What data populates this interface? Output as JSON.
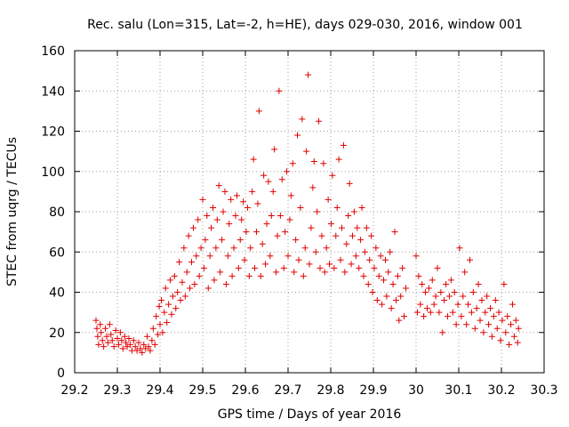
{
  "chart_data": {
    "type": "scatter",
    "title": "Rec. salu (Lon=315, Lat=-2, h=HE), days 029-030, 2016, window 001",
    "xlabel": "GPS time / Days of year 2016",
    "ylabel": "STEC from uqrg / TECUs",
    "xlim": [
      29.2,
      30.3
    ],
    "ylim": [
      0,
      160
    ],
    "xticks": [
      "29.2",
      "29.3",
      "29.4",
      "29.5",
      "29.6",
      "29.7",
      "29.8",
      "29.9",
      "30",
      "30.1",
      "30.2",
      "30.3"
    ],
    "yticks": [
      "0",
      "20",
      "40",
      "60",
      "80",
      "100",
      "120",
      "140",
      "160"
    ],
    "grid": true,
    "marker": "+",
    "color": "#e00000",
    "series": [
      {
        "points": [
          [
            29.25,
            26
          ],
          [
            29.252,
            22
          ],
          [
            29.254,
            18
          ],
          [
            29.256,
            14
          ],
          [
            29.26,
            24
          ],
          [
            29.262,
            20
          ],
          [
            29.265,
            16
          ],
          [
            29.268,
            13
          ],
          [
            29.272,
            22
          ],
          [
            29.275,
            18
          ],
          [
            29.278,
            15
          ],
          [
            29.282,
            24
          ],
          [
            29.285,
            19
          ],
          [
            29.288,
            16
          ],
          [
            29.292,
            13
          ],
          [
            29.296,
            21
          ],
          [
            29.3,
            17
          ],
          [
            29.303,
            14
          ],
          [
            29.307,
            20
          ],
          [
            29.31,
            16
          ],
          [
            29.313,
            12
          ],
          [
            29.317,
            18
          ],
          [
            29.32,
            15
          ],
          [
            29.323,
            13
          ],
          [
            29.327,
            17
          ],
          [
            29.33,
            14
          ],
          [
            29.334,
            11
          ],
          [
            29.338,
            16
          ],
          [
            29.342,
            13
          ],
          [
            29.346,
            11
          ],
          [
            29.35,
            15
          ],
          [
            29.354,
            12
          ],
          [
            29.358,
            10
          ],
          [
            29.362,
            14
          ],
          [
            29.366,
            12
          ],
          [
            29.37,
            18
          ],
          [
            29.373,
            13
          ],
          [
            29.377,
            11
          ],
          [
            29.381,
            16
          ],
          [
            29.384,
            22
          ],
          [
            29.388,
            14
          ],
          [
            29.391,
            28
          ],
          [
            29.395,
            19
          ],
          [
            29.398,
            33
          ],
          [
            29.4,
            24
          ],
          [
            29.403,
            36
          ],
          [
            29.406,
            20
          ],
          [
            29.41,
            30
          ],
          [
            29.413,
            42
          ],
          [
            29.416,
            25
          ],
          [
            29.42,
            34
          ],
          [
            29.424,
            46
          ],
          [
            29.427,
            29
          ],
          [
            29.43,
            38
          ],
          [
            29.434,
            48
          ],
          [
            29.437,
            32
          ],
          [
            29.441,
            40
          ],
          [
            29.445,
            55
          ],
          [
            29.448,
            36
          ],
          [
            29.452,
            45
          ],
          [
            29.456,
            62
          ],
          [
            29.459,
            38
          ],
          [
            29.463,
            50
          ],
          [
            29.467,
            68
          ],
          [
            29.47,
            42
          ],
          [
            29.474,
            55
          ],
          [
            29.478,
            72
          ],
          [
            29.481,
            44
          ],
          [
            29.485,
            58
          ],
          [
            29.489,
            76
          ],
          [
            29.492,
            48
          ],
          [
            29.496,
            62
          ],
          [
            29.5,
            86
          ],
          [
            29.503,
            52
          ],
          [
            29.506,
            66
          ],
          [
            29.51,
            78
          ],
          [
            29.513,
            42
          ],
          [
            29.517,
            58
          ],
          [
            29.52,
            72
          ],
          [
            29.524,
            82
          ],
          [
            29.527,
            46
          ],
          [
            29.531,
            62
          ],
          [
            29.534,
            76
          ],
          [
            29.538,
            93
          ],
          [
            29.541,
            50
          ],
          [
            29.545,
            66
          ],
          [
            29.548,
            80
          ],
          [
            29.552,
            90
          ],
          [
            29.555,
            44
          ],
          [
            29.559,
            58
          ],
          [
            29.562,
            74
          ],
          [
            29.566,
            86
          ],
          [
            29.569,
            48
          ],
          [
            29.573,
            62
          ],
          [
            29.577,
            78
          ],
          [
            29.58,
            88
          ],
          [
            29.584,
            52
          ],
          [
            29.588,
            66
          ],
          [
            29.591,
            76
          ],
          [
            29.595,
            85
          ],
          [
            29.598,
            56
          ],
          [
            29.602,
            70
          ],
          [
            29.605,
            82
          ],
          [
            29.609,
            48
          ],
          [
            29.612,
            62
          ],
          [
            29.616,
            90
          ],
          [
            29.619,
            106
          ],
          [
            29.622,
            52
          ],
          [
            29.626,
            70
          ],
          [
            29.629,
            84
          ],
          [
            29.632,
            130
          ],
          [
            29.636,
            48
          ],
          [
            29.64,
            64
          ],
          [
            29.643,
            98
          ],
          [
            29.647,
            54
          ],
          [
            29.65,
            74
          ],
          [
            29.654,
            95
          ],
          [
            29.658,
            58
          ],
          [
            29.661,
            78
          ],
          [
            29.665,
            90
          ],
          [
            29.668,
            111
          ],
          [
            29.672,
            50
          ],
          [
            29.675,
            68
          ],
          [
            29.679,
            140
          ],
          [
            29.682,
            78
          ],
          [
            29.686,
            96
          ],
          [
            29.69,
            52
          ],
          [
            29.693,
            70
          ],
          [
            29.697,
            100
          ],
          [
            29.7,
            58
          ],
          [
            29.704,
            76
          ],
          [
            29.707,
            88
          ],
          [
            29.711,
            104
          ],
          [
            29.714,
            50
          ],
          [
            29.718,
            66
          ],
          [
            29.722,
            118
          ],
          [
            29.725,
            56
          ],
          [
            29.729,
            82
          ],
          [
            29.733,
            126
          ],
          [
            29.736,
            48
          ],
          [
            29.74,
            62
          ],
          [
            29.743,
            110
          ],
          [
            29.747,
            148
          ],
          [
            29.75,
            54
          ],
          [
            29.754,
            72
          ],
          [
            29.758,
            92
          ],
          [
            29.761,
            105
          ],
          [
            29.765,
            60
          ],
          [
            29.768,
            80
          ],
          [
            29.772,
            125
          ],
          [
            29.775,
            52
          ],
          [
            29.779,
            68
          ],
          [
            29.783,
            104
          ],
          [
            29.786,
            50
          ],
          [
            29.79,
            62
          ],
          [
            29.794,
            86
          ],
          [
            29.797,
            54
          ],
          [
            29.801,
            74
          ],
          [
            29.804,
            98
          ],
          [
            29.808,
            52
          ],
          [
            29.812,
            68
          ],
          [
            29.815,
            82
          ],
          [
            29.819,
            106
          ],
          [
            29.823,
            56
          ],
          [
            29.826,
            72
          ],
          [
            29.83,
            113
          ],
          [
            29.833,
            50
          ],
          [
            29.837,
            64
          ],
          [
            29.841,
            78
          ],
          [
            29.844,
            94
          ],
          [
            29.848,
            54
          ],
          [
            29.851,
            68
          ],
          [
            29.855,
            80
          ],
          [
            29.859,
            58
          ],
          [
            29.862,
            72
          ],
          [
            29.866,
            52
          ],
          [
            29.87,
            66
          ],
          [
            29.873,
            82
          ],
          [
            29.877,
            48
          ],
          [
            29.88,
            60
          ],
          [
            29.884,
            72
          ],
          [
            29.888,
            44
          ],
          [
            29.891,
            56
          ],
          [
            29.895,
            68
          ],
          [
            29.898,
            40
          ],
          [
            29.902,
            52
          ],
          [
            29.906,
            62
          ],
          [
            29.909,
            36
          ],
          [
            29.913,
            48
          ],
          [
            29.917,
            58
          ],
          [
            29.92,
            34
          ],
          [
            29.924,
            46
          ],
          [
            29.928,
            56
          ],
          [
            29.931,
            38
          ],
          [
            29.935,
            50
          ],
          [
            29.939,
            60
          ],
          [
            29.942,
            32
          ],
          [
            29.946,
            44
          ],
          [
            29.95,
            70
          ],
          [
            29.953,
            36
          ],
          [
            29.957,
            48
          ],
          [
            29.96,
            26
          ],
          [
            29.964,
            38
          ],
          [
            29.968,
            52
          ],
          [
            29.972,
            28
          ],
          [
            29.976,
            42
          ],
          [
            30.0,
            58
          ],
          [
            30.003,
            30
          ],
          [
            30.006,
            48
          ],
          [
            30.01,
            34
          ],
          [
            30.014,
            44
          ],
          [
            30.018,
            28
          ],
          [
            30.022,
            40
          ],
          [
            30.026,
            32
          ],
          [
            30.03,
            42
          ],
          [
            30.034,
            30
          ],
          [
            30.038,
            46
          ],
          [
            30.042,
            34
          ],
          [
            30.046,
            38
          ],
          [
            30.05,
            52
          ],
          [
            30.054,
            30
          ],
          [
            30.058,
            40
          ],
          [
            30.062,
            20
          ],
          [
            30.066,
            36
          ],
          [
            30.07,
            44
          ],
          [
            30.074,
            28
          ],
          [
            30.078,
            38
          ],
          [
            30.082,
            46
          ],
          [
            30.086,
            30
          ],
          [
            30.09,
            40
          ],
          [
            30.094,
            24
          ],
          [
            30.098,
            34
          ],
          [
            30.102,
            62
          ],
          [
            30.106,
            28
          ],
          [
            30.11,
            38
          ],
          [
            30.114,
            50
          ],
          [
            30.118,
            24
          ],
          [
            30.122,
            34
          ],
          [
            30.126,
            56
          ],
          [
            30.13,
            30
          ],
          [
            30.134,
            40
          ],
          [
            30.138,
            22
          ],
          [
            30.142,
            32
          ],
          [
            30.146,
            44
          ],
          [
            30.15,
            26
          ],
          [
            30.154,
            36
          ],
          [
            30.158,
            20
          ],
          [
            30.162,
            30
          ],
          [
            30.166,
            38
          ],
          [
            30.17,
            24
          ],
          [
            30.174,
            32
          ],
          [
            30.178,
            18
          ],
          [
            30.182,
            28
          ],
          [
            30.186,
            36
          ],
          [
            30.19,
            22
          ],
          [
            30.194,
            30
          ],
          [
            30.198,
            16
          ],
          [
            30.202,
            26
          ],
          [
            30.206,
            44
          ],
          [
            30.21,
            20
          ],
          [
            30.214,
            28
          ],
          [
            30.218,
            14
          ],
          [
            30.222,
            24
          ],
          [
            30.226,
            34
          ],
          [
            30.23,
            18
          ],
          [
            30.234,
            26
          ],
          [
            30.238,
            15
          ],
          [
            30.24,
            22
          ]
        ]
      }
    ]
  }
}
